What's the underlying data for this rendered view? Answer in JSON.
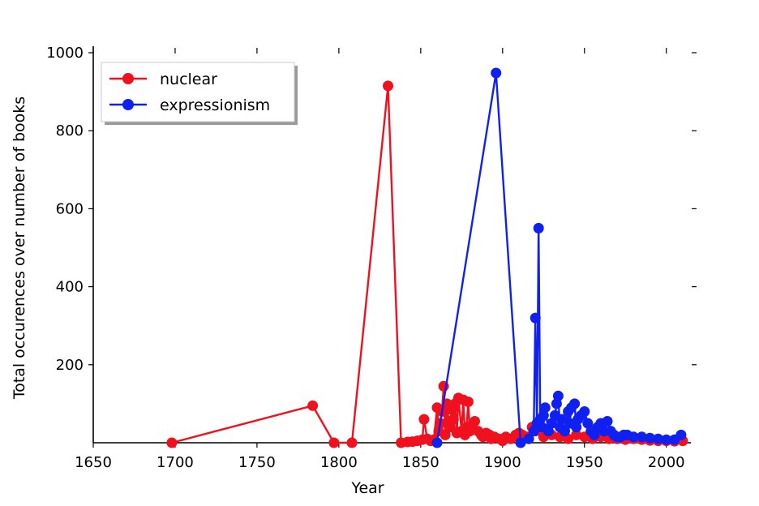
{
  "chart_data": {
    "type": "line",
    "title": "",
    "xlabel": "Year",
    "ylabel": "Total occurences over number of books",
    "xlim": [
      1650,
      2015
    ],
    "ylim": [
      0,
      1000
    ],
    "x_ticks": [
      1650,
      1700,
      1750,
      1800,
      1850,
      1900,
      1950,
      2000
    ],
    "y_ticks": [
      200,
      400,
      600,
      800,
      1000
    ],
    "grid": false,
    "legend_position": "top-left",
    "series": [
      {
        "name": "nuclear",
        "color": "#f0101e",
        "x": [
          1698,
          1784,
          1797,
          1808,
          1830,
          1838,
          1842,
          1845,
          1848,
          1851,
          1852,
          1854,
          1856,
          1858,
          1860,
          1861,
          1862,
          1863,
          1864,
          1865,
          1866,
          1867,
          1868,
          1869,
          1870,
          1871,
          1872,
          1873,
          1875,
          1876,
          1877,
          1878,
          1879,
          1880,
          1881,
          1882,
          1883,
          1885,
          1887,
          1888,
          1890,
          1892,
          1893,
          1895,
          1898,
          1900,
          1902,
          1905,
          1908,
          1910,
          1912,
          1915,
          1918,
          1920,
          1925,
          1930,
          1935,
          1940,
          1945,
          1950,
          1955,
          1960,
          1965,
          1970,
          1975,
          1980,
          1985,
          1990,
          1995,
          2000,
          2005,
          2010
        ],
        "y": [
          0,
          95,
          0,
          0,
          915,
          0,
          2,
          3,
          5,
          8,
          60,
          10,
          5,
          8,
          90,
          30,
          50,
          80,
          145,
          20,
          100,
          55,
          40,
          85,
          60,
          100,
          25,
          115,
          30,
          110,
          20,
          40,
          105,
          30,
          45,
          35,
          55,
          30,
          20,
          15,
          25,
          20,
          10,
          15,
          10,
          5,
          15,
          10,
          20,
          25,
          20,
          15,
          40,
          30,
          15,
          20,
          15,
          10,
          20,
          15,
          10,
          15,
          10,
          10,
          8,
          10,
          8,
          6,
          5,
          5,
          4,
          5
        ]
      },
      {
        "name": "expressionism",
        "color": "#1020f0",
        "x": [
          1860,
          1896,
          1911,
          1916,
          1919,
          1920,
          1921,
          1922,
          1923,
          1924,
          1925,
          1926,
          1928,
          1930,
          1932,
          1933,
          1934,
          1935,
          1936,
          1938,
          1940,
          1941,
          1942,
          1944,
          1945,
          1946,
          1948,
          1950,
          1952,
          1954,
          1956,
          1958,
          1960,
          1962,
          1964,
          1966,
          1968,
          1970,
          1972,
          1974,
          1976,
          1980,
          1985,
          1990,
          1995,
          2000,
          2005,
          2009
        ],
        "y": [
          0,
          948,
          0,
          10,
          30,
          320,
          50,
          550,
          60,
          40,
          70,
          90,
          30,
          50,
          70,
          100,
          120,
          40,
          60,
          30,
          80,
          50,
          90,
          100,
          40,
          60,
          70,
          80,
          50,
          30,
          20,
          40,
          50,
          30,
          55,
          30,
          20,
          15,
          15,
          20,
          20,
          15,
          15,
          12,
          10,
          8,
          8,
          20
        ]
      }
    ]
  }
}
